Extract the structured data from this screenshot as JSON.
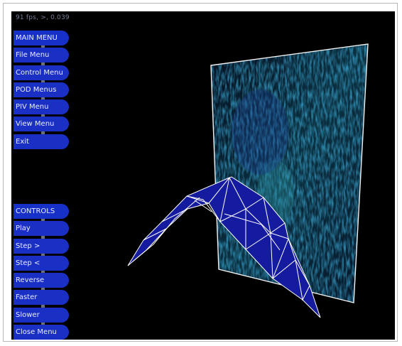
{
  "fps_readout": "91 fps, >, 0.039",
  "main_menu": {
    "title": "MAIN MENU",
    "items": [
      {
        "label": "File Menu"
      },
      {
        "label": "Control Menu"
      },
      {
        "label": "POD Menus"
      },
      {
        "label": "PIV Menu"
      },
      {
        "label": "View Menu"
      },
      {
        "label": "Exit"
      }
    ]
  },
  "controls_menu": {
    "title": "CONTROLS",
    "items": [
      {
        "label": "Play"
      },
      {
        "label": "Step >"
      },
      {
        "label": "Step <"
      },
      {
        "label": "Reverse"
      },
      {
        "label": "Faster"
      },
      {
        "label": "Slower"
      },
      {
        "label": "Close Menu"
      }
    ]
  },
  "colors": {
    "background": "#000000",
    "menu_button": "#1a2fc4",
    "wing_fill": "#141a9a",
    "wireframe": "#ffffff",
    "piv_plane": "#0b2338"
  }
}
